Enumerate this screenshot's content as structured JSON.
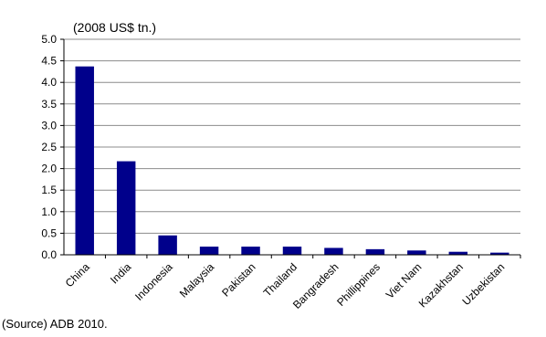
{
  "chart_data": {
    "type": "bar",
    "unit_label": "(2008 US$ tn.)",
    "source": "(Source) ADB 2010.",
    "categories": [
      "China",
      "India",
      "Indonesia",
      "Malaysia",
      "Pakistan",
      "Thailand",
      "Bangradesh",
      "Phillippines",
      "Viet Nam",
      "Kazakhstan",
      "Uzbekistan"
    ],
    "values": [
      4.37,
      2.17,
      0.45,
      0.19,
      0.19,
      0.19,
      0.16,
      0.13,
      0.1,
      0.07,
      0.05
    ],
    "ylim": [
      0,
      5.0
    ],
    "yticks": [
      "0.0",
      "0.5",
      "1.0",
      "1.5",
      "2.0",
      "2.5",
      "3.0",
      "3.5",
      "4.0",
      "4.5",
      "5.0"
    ],
    "grid": true,
    "bar_color": "#00008B"
  }
}
